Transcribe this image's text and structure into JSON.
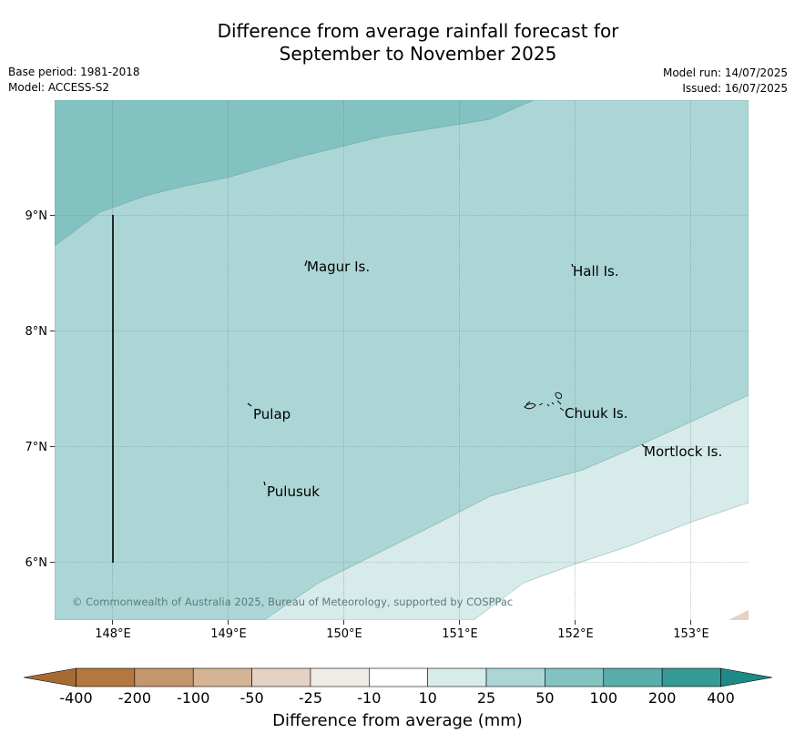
{
  "title": {
    "line1": "Difference from average rainfall forecast for",
    "line2": "September to November 2025"
  },
  "meta": {
    "base_period": "Base period: 1981-2018",
    "model": "Model: ACCESS-S2",
    "model_run": "Model run: 14/07/2025",
    "issued": "Issued: 16/07/2025"
  },
  "map": {
    "x_ticks": [
      "148°E",
      "149°E",
      "150°E",
      "151°E",
      "152°E",
      "153°E"
    ],
    "y_ticks": [
      "9°N",
      "8°N",
      "7°N",
      "6°N"
    ],
    "places": [
      {
        "name": "Magur Is.",
        "key": "magur"
      },
      {
        "name": "Hall Is.",
        "key": "hall"
      },
      {
        "name": "Pulap",
        "key": "pulap"
      },
      {
        "name": "Chuuk Is.",
        "key": "chuuk"
      },
      {
        "name": "Mortlock Is.",
        "key": "mortlock"
      },
      {
        "name": "Pulusuk",
        "key": "pulusuk"
      }
    ],
    "copyright": "© Commonwealth of Australia 2025, Bureau of Meteorology, supported by COSPPac"
  },
  "legend": {
    "label": "Difference from average (mm)",
    "ticks": [
      "-400",
      "-200",
      "-100",
      "-50",
      "-25",
      "-10",
      "10",
      "25",
      "50",
      "100",
      "200",
      "400"
    ],
    "colors": [
      "#a66b34",
      "#b3773f",
      "#c4966b",
      "#d5b496",
      "#e5d2c2",
      "#efece6",
      "#ffffff",
      "#d6ebea",
      "#acd6d5",
      "#82c2c1",
      "#59aeac",
      "#359996",
      "#1e8a86"
    ]
  },
  "zones": {
    "dark": "#82c2c1",
    "mid": "#acd6d5",
    "light": "#d6ebea",
    "white": "#ffffff"
  }
}
